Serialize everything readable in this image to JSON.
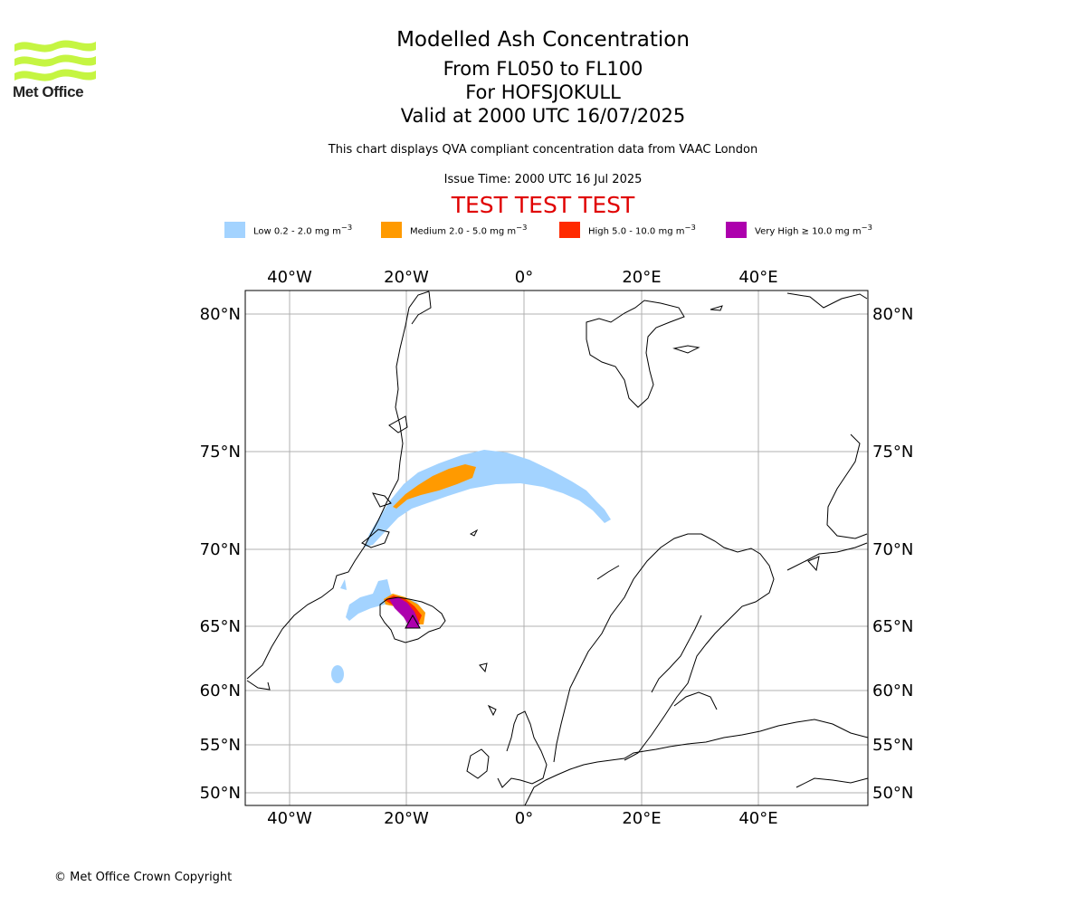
{
  "branding": {
    "logo_text": "Met Office",
    "logo_color": "#c5f542"
  },
  "header": {
    "title": "Modelled Ash Concentration",
    "levels": "From FL050 to FL100",
    "volcano": "For HOFSJOKULL",
    "valid": "Valid at 2000 UTC 16/07/2025",
    "subtitle": "This chart displays QVA compliant concentration data from VAAC London",
    "issue_time": "Issue Time: 2000 UTC 16 Jul 2025",
    "test_banner": "TEST TEST TEST"
  },
  "legend": [
    {
      "prefix": "Low 0.2 - 2.0 mg m",
      "exp": "−3",
      "color": "#a3d3ff"
    },
    {
      "prefix": "Medium 2.0 - 5.0 mg m",
      "exp": "−3",
      "color": "#ff9a00"
    },
    {
      "prefix": "High 5.0 - 10.0 mg m",
      "exp": "−3",
      "color": "#ff2a00"
    },
    {
      "prefix": "Very High  ≥  10.0 mg m",
      "exp": "−3",
      "color": "#ad00ad"
    }
  ],
  "map": {
    "lon_labels": [
      "40°W",
      "20°W",
      "0°",
      "20°E",
      "40°E"
    ],
    "lat_labels": [
      "80°N",
      "75°N",
      "70°N",
      "65°N",
      "60°N",
      "55°N",
      "50°N"
    ],
    "grid": true,
    "colors": {
      "low": "#a3d3ff",
      "medium": "#ff9a00",
      "high": "#ff2a00",
      "very_high": "#ad00ad",
      "grid": "#b0b0b0",
      "coast": "#000000"
    }
  },
  "footer": {
    "copyright": "© Met Office Crown Copyright"
  }
}
